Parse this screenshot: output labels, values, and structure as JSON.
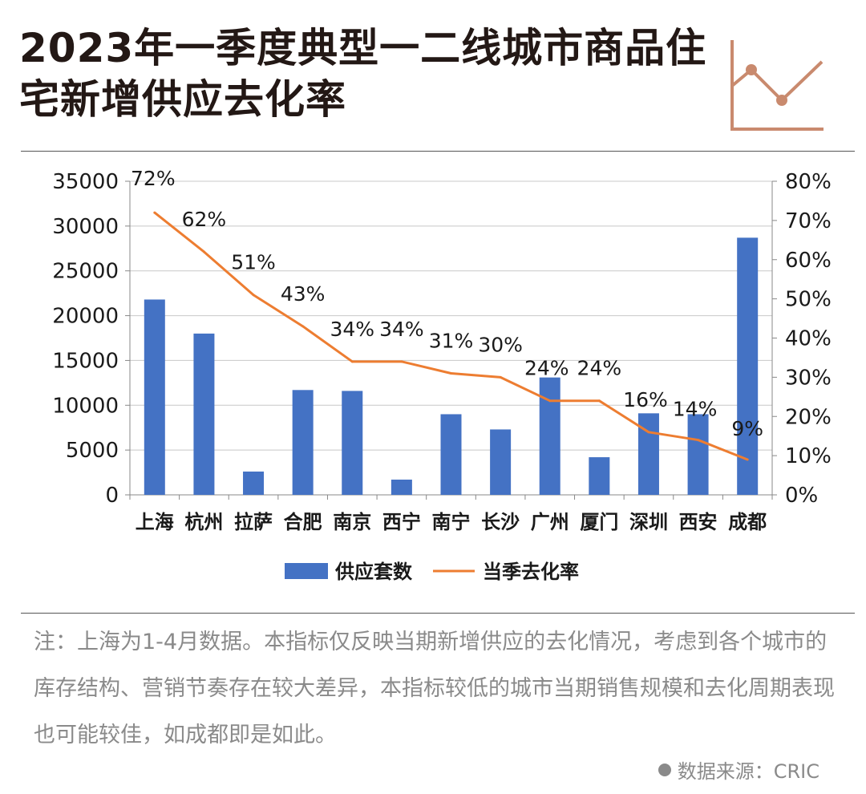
{
  "header": {
    "title": "2023年一季度典型一二线城市商品住宅新增供应去化率",
    "icon": "line-chart-icon"
  },
  "colors": {
    "bar": "#4472C4",
    "line": "#ED7D31",
    "accent": "#C98A6E",
    "title": "#231815",
    "muted": "#8a8a8a"
  },
  "chart_data": {
    "type": "bar",
    "categories": [
      "上海",
      "杭州",
      "拉萨",
      "合肥",
      "南京",
      "西宁",
      "南宁",
      "长沙",
      "广州",
      "厦门",
      "深圳",
      "西安",
      "成都"
    ],
    "series": [
      {
        "name": "供应套数",
        "type": "bar",
        "axis": "left",
        "values": [
          21800,
          18000,
          2600,
          11700,
          11600,
          1700,
          9000,
          7300,
          13100,
          4200,
          9100,
          9000,
          28700
        ]
      },
      {
        "name": "当季去化率",
        "type": "line",
        "axis": "right",
        "values": [
          72,
          62,
          51,
          43,
          34,
          34,
          31,
          30,
          24,
          24,
          16,
          14,
          9
        ],
        "labels": [
          "72%",
          "62%",
          "51%",
          "43%",
          "34%",
          "34%",
          "31%",
          "30%",
          "24%",
          "24%",
          "16%",
          "14%",
          "9%"
        ]
      }
    ],
    "y_left": {
      "min": 0,
      "max": 35000,
      "ticks": [
        "0",
        "5000",
        "10000",
        "15000",
        "20000",
        "25000",
        "30000",
        "35000"
      ]
    },
    "y_right": {
      "min": 0,
      "max": 80,
      "ticks": [
        "0%",
        "10%",
        "20%",
        "30%",
        "40%",
        "50%",
        "60%",
        "70%",
        "80%"
      ]
    },
    "grid": true,
    "legend_position": "bottom"
  },
  "footer": {
    "note": "注：上海为1-4月数据。本指标仅反映当期新增供应的去化情况，考虑到各个城市的库存结构、营销节奏存在较大差异，本指标较低的城市当期销售规模和去化周期表现也可能较佳，如成都即是如此。",
    "source": "数据来源：CRIC"
  }
}
